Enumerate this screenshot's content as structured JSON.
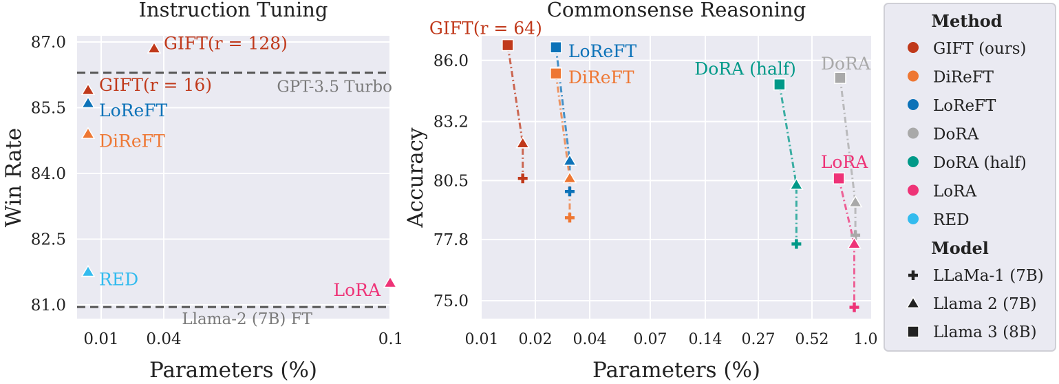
{
  "chart_data": [
    {
      "type": "scatter",
      "title": "Instruction Tuning",
      "xlabel": "Parameters (%)",
      "ylabel": "Win Rate",
      "x_ticks": [
        "0.01",
        "0.04",
        "0.1"
      ],
      "x_tick_values": [
        0.01,
        0.04,
        0.1
      ],
      "y_ticks": [
        "81.0",
        "82.5",
        "84.0",
        "85.5",
        "87.0"
      ],
      "ylim": [
        80.7,
        87.2
      ],
      "grid": true,
      "points": [
        {
          "method": "GIFT (ours)",
          "label": "GIFT(r = 128)",
          "x": 0.031,
          "y": 86.85,
          "marker": "triangle"
        },
        {
          "method": "GIFT (ours)",
          "label": "GIFT(r = 16)",
          "x": 0.0049,
          "y": 85.9,
          "marker": "triangle"
        },
        {
          "method": "LoReFT",
          "label": "LoReFT",
          "x": 0.0049,
          "y": 85.6,
          "marker": "triangle"
        },
        {
          "method": "DiReFT",
          "label": "DiReFT",
          "x": 0.0049,
          "y": 84.9,
          "marker": "triangle"
        },
        {
          "method": "RED",
          "label": "RED",
          "x": 0.0049,
          "y": 81.75,
          "marker": "triangle"
        },
        {
          "method": "LoRA",
          "label": "LoRA",
          "x": 0.1,
          "y": 81.5,
          "marker": "triangle"
        }
      ],
      "reference_lines": [
        {
          "label": "GPT-3.5 Turbo",
          "y": 86.3
        },
        {
          "label": "Llama-2 (7B) FT",
          "y": 80.95
        }
      ]
    },
    {
      "type": "scatter",
      "title": "Commonsense Reasoning",
      "xlabel": "Parameters (%)",
      "ylabel": "Accuracy",
      "x_ticks": [
        "0.01",
        "0.02",
        "0.04",
        "0.07",
        "0.14",
        "0.27",
        "0.52",
        "1.0"
      ],
      "y_ticks": [
        "75.0",
        "77.8",
        "80.5",
        "83.2",
        "86.0"
      ],
      "ylim": [
        74.2,
        87.2
      ],
      "grid": true,
      "series": [
        {
          "method": "GIFT (ours)",
          "label": "GIFT(r = 64)",
          "points": [
            {
              "model": "Llama 3 (8B)",
              "x": 0.014,
              "y": 86.7
            },
            {
              "model": "Llama 2 (7B)",
              "x": 0.017,
              "y": 82.2
            },
            {
              "model": "LLaMa-1 (7B)",
              "x": 0.017,
              "y": 80.6
            }
          ]
        },
        {
          "method": "LoReFT",
          "label": "LoReFT",
          "points": [
            {
              "model": "Llama 3 (8B)",
              "x": 0.026,
              "y": 86.6
            },
            {
              "model": "Llama 2 (7B)",
              "x": 0.031,
              "y": 81.4
            },
            {
              "model": "LLaMa-1 (7B)",
              "x": 0.031,
              "y": 80.0
            }
          ]
        },
        {
          "method": "DiReFT",
          "label": "DiReFT",
          "points": [
            {
              "model": "Llama 3 (8B)",
              "x": 0.026,
              "y": 85.4
            },
            {
              "model": "Llama 2 (7B)",
              "x": 0.031,
              "y": 80.6
            },
            {
              "model": "LLaMa-1 (7B)",
              "x": 0.031,
              "y": 78.8
            }
          ]
        },
        {
          "method": "DoRA (half)",
          "label": "DoRA (half)",
          "points": [
            {
              "model": "Llama 3 (8B)",
              "x": 0.35,
              "y": 84.9
            },
            {
              "model": "Llama 2 (7B)",
              "x": 0.43,
              "y": 80.3
            },
            {
              "model": "LLaMa-1 (7B)",
              "x": 0.43,
              "y": 77.6
            }
          ]
        },
        {
          "method": "DoRA",
          "label": "DoRA",
          "points": [
            {
              "model": "Llama 3 (8B)",
              "x": 0.71,
              "y": 85.2
            },
            {
              "model": "Llama 2 (7B)",
              "x": 0.84,
              "y": 79.5
            },
            {
              "model": "LLaMa-1 (7B)",
              "x": 0.84,
              "y": 78.0
            }
          ]
        },
        {
          "method": "LoRA",
          "label": "LoRA",
          "points": [
            {
              "model": "Llama 3 (8B)",
              "x": 0.7,
              "y": 80.6
            },
            {
              "model": "Llama 2 (7B)",
              "x": 0.83,
              "y": 77.6
            },
            {
              "model": "LLaMa-1 (7B)",
              "x": 0.83,
              "y": 74.7
            }
          ]
        }
      ]
    }
  ],
  "legend": {
    "method_title": "Method",
    "methods": [
      {
        "name": "GIFT (ours)",
        "color": "#c0391b"
      },
      {
        "name": "DiReFT",
        "color": "#ee7733"
      },
      {
        "name": "LoReFT",
        "color": "#0c72b8"
      },
      {
        "name": "DoRA",
        "color": "#a9a9a9"
      },
      {
        "name": "DoRA (half)",
        "color": "#009988"
      },
      {
        "name": "LoRA",
        "color": "#ee3377"
      },
      {
        "name": "RED",
        "color": "#33bbee"
      }
    ],
    "model_title": "Model",
    "models": [
      {
        "name": "LLaMa-1 (7B)",
        "marker": "plus"
      },
      {
        "name": "Llama 2 (7B)",
        "marker": "triangle"
      },
      {
        "name": "Llama 3 (8B)",
        "marker": "square"
      }
    ]
  },
  "colors": {
    "panel_background": "#eaeaf2",
    "grid": "#ffffff",
    "reference_line": "#555555",
    "reference_text": "#7a7a7a"
  }
}
